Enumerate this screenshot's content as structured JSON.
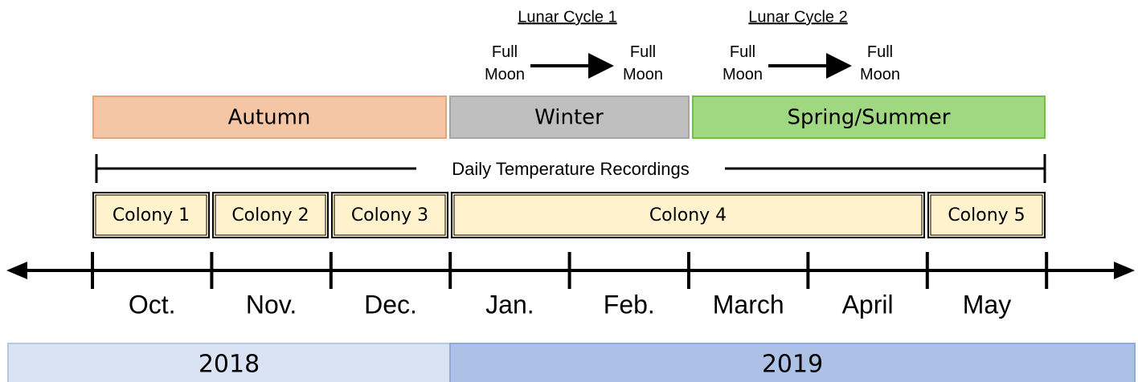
{
  "lunar_cycles": [
    {
      "title": "Lunar Cycle 1",
      "start": "Full Moon",
      "end": "Full Moon"
    },
    {
      "title": "Lunar Cycle 2",
      "start": "Full Moon",
      "end": "Full Moon"
    }
  ],
  "seasons": [
    "Autumn",
    "Winter",
    "Spring/Summer"
  ],
  "recording_label": "Daily Temperature Recordings",
  "colonies": [
    "Colony 1",
    "Colony 2",
    "Colony 3",
    "Colony 4",
    "Colony 5"
  ],
  "months": [
    "Oct.",
    "Nov.",
    "Dec.",
    "Jan.",
    "Feb.",
    "March",
    "April",
    "May"
  ],
  "years": [
    "2018",
    "2019"
  ]
}
